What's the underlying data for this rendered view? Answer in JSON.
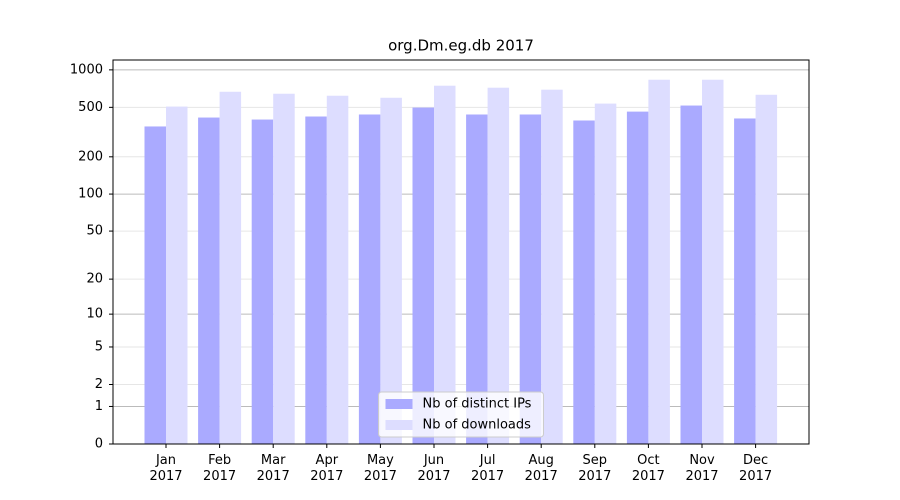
{
  "chart_data": {
    "type": "bar",
    "title": "org.Dm.eg.db 2017",
    "categories": [
      "Jan\n2017",
      "Feb\n2017",
      "Mar\n2017",
      "Apr\n2017",
      "May\n2017",
      "Jun\n2017",
      "Jul\n2017",
      "Aug\n2017",
      "Sep\n2017",
      "Oct\n2017",
      "Nov\n2017",
      "Dec\n2017"
    ],
    "series": [
      {
        "name": "Nb of distinct IPs",
        "color": "#aaaaff",
        "values": [
          351,
          414,
          399,
          422,
          438,
          498,
          438,
          438,
          392,
          462,
          517,
          407
        ]
      },
      {
        "name": "Nb of downloads",
        "color": "#ddddff",
        "values": [
          507,
          667,
          643,
          620,
          597,
          746,
          719,
          693,
          536,
          833,
          833,
          631
        ]
      }
    ],
    "yscale": "log1p",
    "ylim": [
      0,
      1200
    ],
    "yticks": [
      0,
      1,
      2,
      5,
      10,
      20,
      50,
      100,
      200,
      500,
      1000
    ],
    "grid": true,
    "legend": "lower center"
  }
}
